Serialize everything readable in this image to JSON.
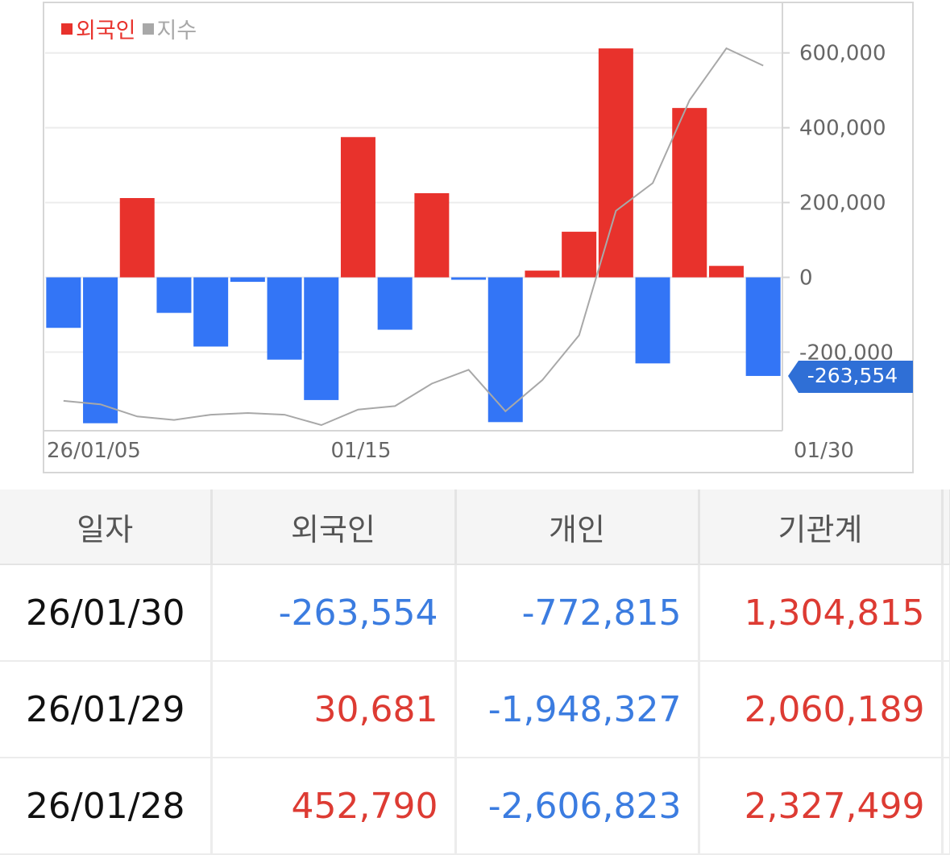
{
  "colors": {
    "foreign_positive": "#e8322c",
    "foreign_negative": "#3375f6",
    "index_line": "#a8a8a8",
    "current_badge": "#2f6fd6"
  },
  "chart_data": {
    "type": "bar",
    "legend": [
      {
        "label": "외국인",
        "color": "#e8322c"
      },
      {
        "label": "지수",
        "color": "#a8a8a8"
      }
    ],
    "legend_position": "top-left",
    "x_tick_labels": [
      {
        "index": 0,
        "label": "26/01/05"
      },
      {
        "index": 8,
        "label": "01/15"
      },
      {
        "index": 20,
        "label": "01/30"
      }
    ],
    "y_ticks": [
      -200000,
      0,
      200000,
      400000,
      600000
    ],
    "y_tick_labels": [
      "-200,000",
      "0",
      "200,000",
      "400,000",
      "600,000"
    ],
    "ylim": [
      -410000,
      735000
    ],
    "grid": true,
    "series": [
      {
        "name": "외국인",
        "type": "bar",
        "values": [
          -135000,
          -390000,
          212000,
          -95000,
          -185000,
          -12000,
          -220000,
          -328000,
          375000,
          -140000,
          225000,
          -6000,
          -387000,
          18000,
          122000,
          612000,
          -230000,
          452790,
          30681,
          -263554
        ]
      },
      {
        "name": "지수",
        "type": "line",
        "values": [
          1.0,
          0.99,
          0.955,
          0.945,
          0.96,
          0.965,
          0.96,
          0.93,
          0.975,
          0.985,
          1.05,
          1.09,
          0.97,
          1.06,
          1.19,
          1.55,
          1.63,
          1.87,
          2.02,
          1.97
        ]
      }
    ],
    "current_value_label": "-263,554"
  },
  "table": {
    "headers": [
      "일자",
      "외국인",
      "개인",
      "기관계"
    ],
    "rows": [
      {
        "date": "26/01/30",
        "foreign": "-263,554",
        "individual": "-772,815",
        "institution": "1,304,815"
      },
      {
        "date": "26/01/29",
        "foreign": "30,681",
        "individual": "-1,948,327",
        "institution": "2,060,189"
      },
      {
        "date": "26/01/28",
        "foreign": "452,790",
        "individual": "-2,606,823",
        "institution": "2,327,499"
      }
    ]
  }
}
